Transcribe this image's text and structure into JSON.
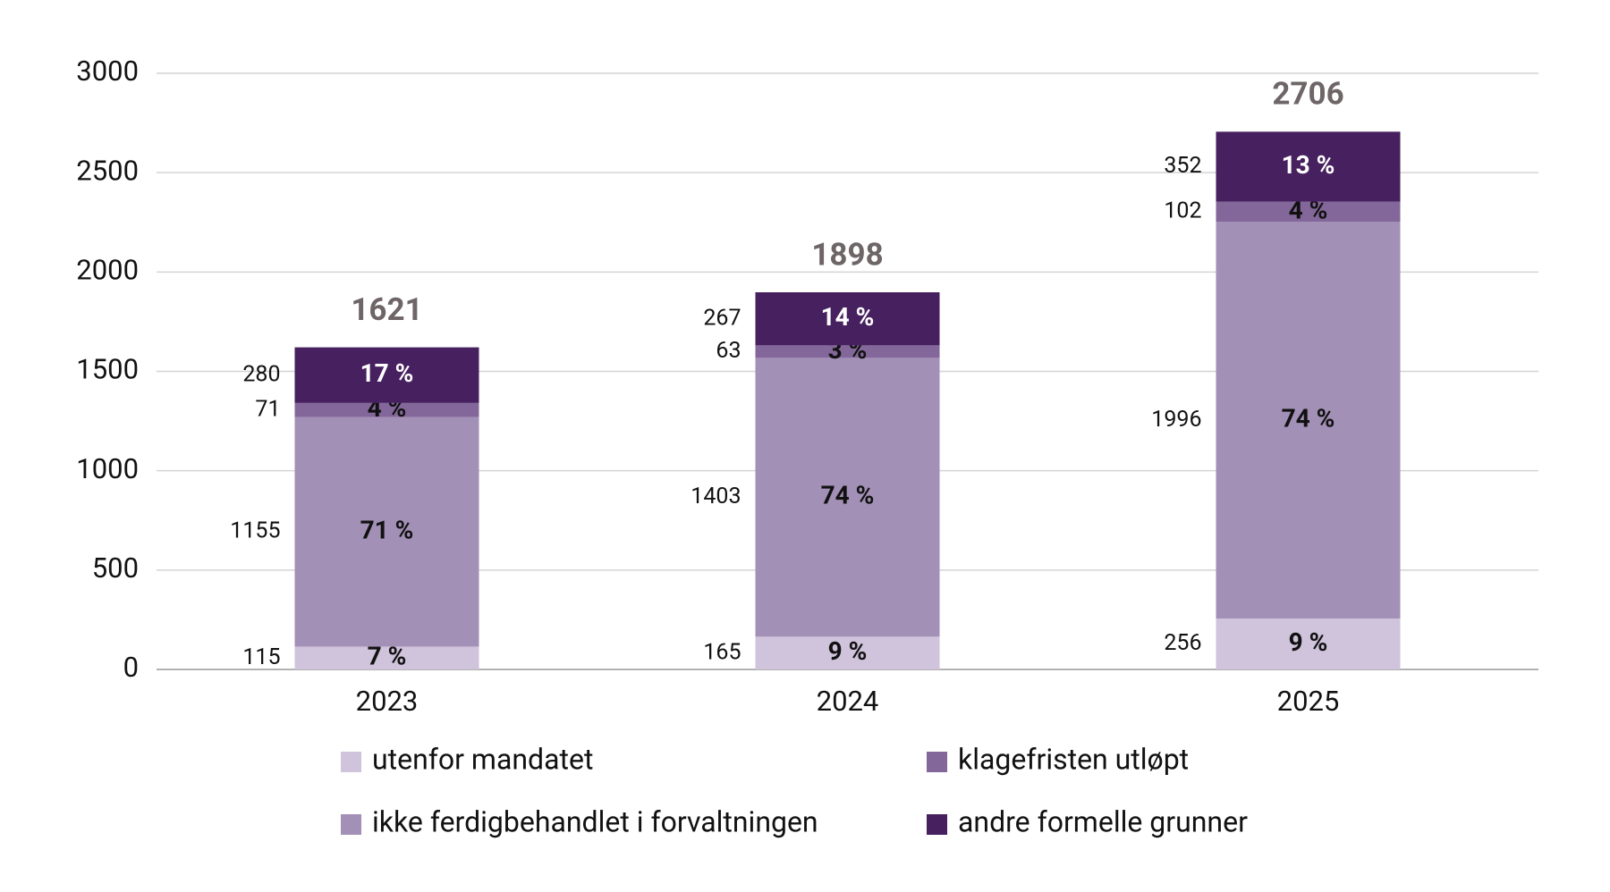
{
  "chart_data": {
    "type": "stacked-bar",
    "categories": [
      "2023",
      "2024",
      "2025"
    ],
    "series": [
      {
        "name": "utenfor mandatet",
        "color": "#d0c3dc",
        "label_color": "#111111",
        "values": [
          115,
          165,
          256
        ],
        "value_labels": [
          "7 %",
          "9 %",
          "9 %"
        ]
      },
      {
        "name": "ikke ferdigbehandlet i forvaltningen",
        "color": "#a390b6",
        "label_color": "#111111",
        "values": [
          1155,
          1403,
          1996
        ],
        "value_labels": [
          "71 %",
          "74 %",
          "74 %"
        ]
      },
      {
        "name": "klagefristen utløpt",
        "color": "#83679a",
        "label_color": "#111111",
        "values": [
          71,
          63,
          102
        ],
        "value_labels": [
          "4 %",
          "3 %",
          "4 %"
        ]
      },
      {
        "name": "andre formelle grunner",
        "color": "#47205f",
        "label_color": "#ffffff",
        "values": [
          280,
          267,
          352
        ],
        "value_labels": [
          "17 %",
          "14 %",
          "13 %"
        ]
      }
    ],
    "totals": [
      1621,
      1898,
      2706
    ],
    "ylim": [
      0,
      3000
    ],
    "yticks": [
      0,
      500,
      1000,
      1500,
      2000,
      2500,
      3000
    ],
    "grid": true
  }
}
